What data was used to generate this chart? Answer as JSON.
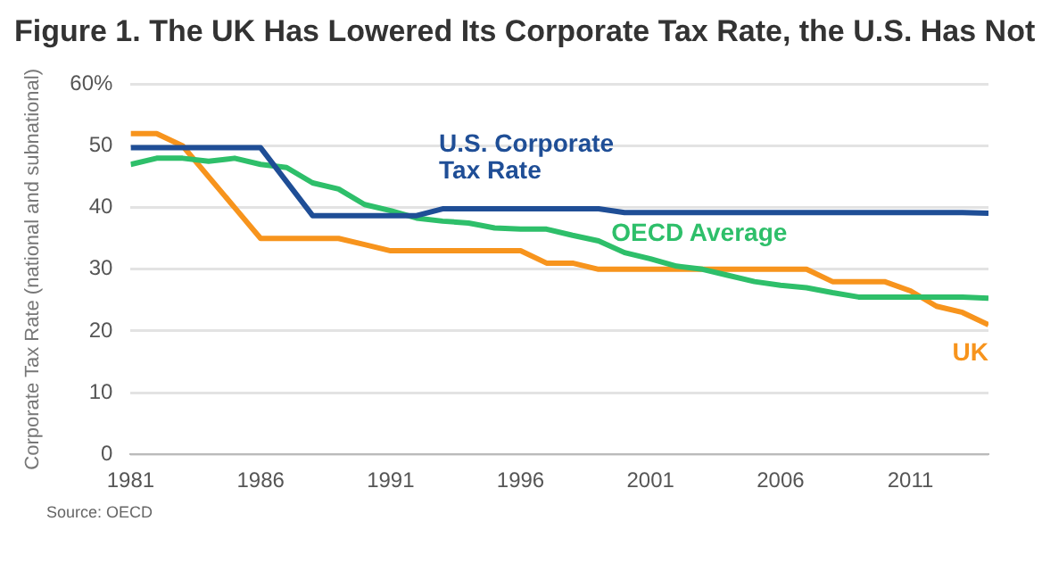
{
  "chart_data": {
    "type": "line",
    "title": "Figure 1. The UK Has Lowered Its Corporate Tax Rate, the U.S. Has Not",
    "ylabel": "Corporate Tax Rate (national and subnational)",
    "x": [
      1981,
      1982,
      1983,
      1984,
      1985,
      1986,
      1987,
      1988,
      1989,
      1990,
      1991,
      1992,
      1993,
      1994,
      1995,
      1996,
      1997,
      1998,
      1999,
      2000,
      2001,
      2002,
      2003,
      2004,
      2005,
      2006,
      2007,
      2008,
      2009,
      2010,
      2011,
      2012,
      2013,
      2014
    ],
    "series": [
      {
        "name": "U.S. Corporate Tax Rate",
        "color": "#1f4e96",
        "values": [
          49.7,
          49.7,
          49.7,
          49.7,
          49.7,
          49.7,
          44.2,
          38.7,
          38.7,
          38.7,
          38.7,
          38.7,
          39.8,
          39.8,
          39.8,
          39.8,
          39.8,
          39.8,
          39.8,
          39.2,
          39.2,
          39.2,
          39.2,
          39.2,
          39.2,
          39.2,
          39.2,
          39.2,
          39.2,
          39.2,
          39.2,
          39.2,
          39.2,
          39.1
        ]
      },
      {
        "name": "OECD Average",
        "color": "#2ebf6a",
        "values": [
          47,
          48,
          48,
          47.5,
          48,
          47,
          46.5,
          44,
          43,
          40.5,
          39.5,
          38.3,
          37.8,
          37.5,
          36.7,
          36.5,
          36.5,
          35.5,
          34.6,
          32.7,
          31.7,
          30.5,
          30,
          29,
          28,
          27.4,
          27,
          26.2,
          25.5,
          25.5,
          25.5,
          25.5,
          25.5,
          25.3
        ]
      },
      {
        "name": "UK",
        "color": "#f7941d",
        "values": [
          52,
          52,
          50,
          45,
          40,
          35,
          35,
          35,
          35,
          34,
          33,
          33,
          33,
          33,
          33,
          33,
          31,
          31,
          30,
          30,
          30,
          30,
          30,
          30,
          30,
          30,
          30,
          28,
          28,
          28,
          26.5,
          24,
          23,
          21
        ]
      }
    ],
    "xlim": [
      1981,
      2014
    ],
    "xticks": [
      1981,
      1986,
      1991,
      1996,
      2001,
      2006,
      2011
    ],
    "ylim": [
      0,
      60
    ],
    "yticks": [
      0,
      10,
      20,
      30,
      40,
      50,
      {
        "value": 60,
        "label": "60%"
      }
    ],
    "grid": "y",
    "legend": false,
    "marker": "none",
    "line_style": "solid",
    "annotations": [
      "Source: OECD"
    ]
  }
}
